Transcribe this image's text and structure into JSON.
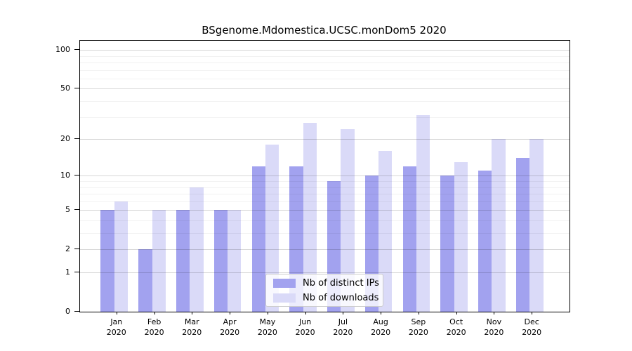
{
  "title": "BSgenome.Mdomestica.UCSC.monDom5 2020",
  "colors": {
    "ips_bar": "#a2a2ef",
    "downloads_bar": "#dadaf8",
    "grid_major": "rgba(0,0,0,0.16)",
    "grid_minor": "rgba(0,0,0,0.05)",
    "spine": "#000000"
  },
  "legend": {
    "position": "lower center"
  },
  "chart_data": {
    "type": "bar",
    "title": "BSgenome.Mdomestica.UCSC.monDom5 2020",
    "categories": [
      "Jan",
      "Feb",
      "Mar",
      "Apr",
      "May",
      "Jun",
      "Jul",
      "Aug",
      "Sep",
      "Oct",
      "Nov",
      "Dec"
    ],
    "year_label": "2020",
    "series": [
      {
        "name": "Nb of distinct IPs",
        "values": [
          5,
          2,
          5,
          5,
          12,
          12,
          9,
          10,
          12,
          10,
          11,
          14
        ]
      },
      {
        "name": "Nb of downloads",
        "values": [
          6,
          5,
          8,
          5,
          18,
          27,
          24,
          16,
          31,
          13,
          20,
          20
        ]
      }
    ],
    "xlabel": "",
    "ylabel": "",
    "y_scale": "log1p",
    "y_ticks": [
      0,
      1,
      2,
      5,
      10,
      20,
      50,
      100
    ],
    "y_minor_ticks": [
      3,
      4,
      6,
      7,
      8,
      9,
      30,
      40,
      60,
      70,
      80,
      90
    ],
    "ylim": [
      0,
      118
    ],
    "grid": true,
    "legend_position": "lower center"
  }
}
